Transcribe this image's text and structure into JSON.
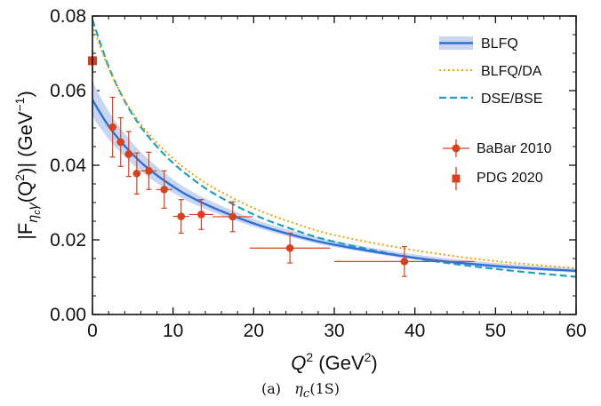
{
  "chart_data": {
    "type": "line",
    "xlabel_main": "Q",
    "xlabel_sup": "2",
    "xlabel_unit": " (GeV",
    "xlabel_unit_sup": "2",
    "xlabel_close": ")",
    "ylabel_a": "|F",
    "ylabel_sub": "η",
    "ylabel_subsub": "c",
    "ylabel_subtail": "γ",
    "ylabel_b": "(Q",
    "ylabel_sup": "2",
    "ylabel_c": ")|  (GeV",
    "ylabel_sup2": "−1",
    "ylabel_d": ")",
    "xlim": [
      0,
      60
    ],
    "ylim": [
      0,
      0.08
    ],
    "x_ticks": [
      "0",
      "10",
      "20",
      "30",
      "40",
      "50",
      "60"
    ],
    "y_ticks": [
      "0.00",
      "0.02",
      "0.04",
      "0.06",
      "0.08"
    ],
    "legend_position": "top-right",
    "colors": {
      "blfq": "#2f6fd6",
      "band": "#c9d6f2",
      "blfq_da": "#f5a000",
      "dse_bse": "#1f9fbf",
      "data": "#d5421f"
    },
    "series": [
      {
        "name": "BLFQ",
        "style": "solid-with-band",
        "x": [
          0,
          2,
          4,
          6,
          8,
          10,
          12,
          15,
          20,
          25,
          30,
          40,
          50,
          60
        ],
        "y": [
          0.0575,
          0.0505,
          0.0452,
          0.0408,
          0.0373,
          0.0343,
          0.0317,
          0.0286,
          0.0244,
          0.0212,
          0.0187,
          0.0152,
          0.013,
          0.0117
        ],
        "band_low": [
          0.053,
          0.047,
          0.0423,
          0.0384,
          0.0352,
          0.0326,
          0.0302,
          0.0274,
          0.0235,
          0.0205,
          0.0181,
          0.0147,
          0.0125,
          0.0112
        ],
        "band_high": [
          0.0625,
          0.0545,
          0.0485,
          0.0435,
          0.0396,
          0.0362,
          0.0334,
          0.0301,
          0.0256,
          0.0223,
          0.0197,
          0.0161,
          0.0138,
          0.0124
        ]
      },
      {
        "name": "BLFQ/DA",
        "style": "dotted",
        "x": [
          0,
          2,
          4,
          6,
          8,
          10,
          12,
          15,
          20,
          25,
          30,
          40,
          50,
          60
        ],
        "y": [
          0.0775,
          0.066,
          0.0575,
          0.051,
          0.046,
          0.0418,
          0.0383,
          0.034,
          0.0285,
          0.0245,
          0.0213,
          0.0172,
          0.0143,
          0.0124
        ]
      },
      {
        "name": "DSE/BSE",
        "style": "dashed",
        "x": [
          0,
          2,
          4,
          6,
          8,
          10,
          12,
          15,
          20,
          25,
          30,
          40,
          50,
          60
        ],
        "y": [
          0.079,
          0.0665,
          0.0572,
          0.0503,
          0.045,
          0.0406,
          0.037,
          0.0325,
          0.0268,
          0.0227,
          0.0195,
          0.0151,
          0.0122,
          0.0101
        ]
      },
      {
        "name": "BaBar 2010",
        "style": "points-errorbars",
        "points": [
          {
            "x": 2.5,
            "y": 0.0502,
            "xerr": 0.5,
            "yerr": 0.008
          },
          {
            "x": 3.5,
            "y": 0.0462,
            "xerr": 0.5,
            "yerr": 0.0065
          },
          {
            "x": 4.5,
            "y": 0.043,
            "xerr": 0.5,
            "yerr": 0.006
          },
          {
            "x": 5.5,
            "y": 0.0378,
            "xerr": 0.5,
            "yerr": 0.0055
          },
          {
            "x": 7.0,
            "y": 0.0385,
            "xerr": 1.0,
            "yerr": 0.005
          },
          {
            "x": 8.9,
            "y": 0.0335,
            "xerr": 1.0,
            "yerr": 0.005
          },
          {
            "x": 11.0,
            "y": 0.0263,
            "xerr": 1.0,
            "yerr": 0.0045
          },
          {
            "x": 13.5,
            "y": 0.0268,
            "xerr": 1.5,
            "yerr": 0.004
          },
          {
            "x": 17.4,
            "y": 0.0262,
            "xerr": 2.5,
            "yerr": 0.004
          },
          {
            "x": 24.5,
            "y": 0.0178,
            "xerr": 5.0,
            "yerr": 0.004
          },
          {
            "x": 38.7,
            "y": 0.0142,
            "xerr": 8.7,
            "yerr": 0.004
          }
        ]
      },
      {
        "name": "PDG 2020",
        "style": "square",
        "points": [
          {
            "x": 0.0,
            "y": 0.068,
            "xerr": 0,
            "yerr": 0.003
          }
        ]
      }
    ]
  },
  "caption": {
    "label": "(a)",
    "main": "η",
    "sub": "c",
    "tail": "(1S)"
  }
}
